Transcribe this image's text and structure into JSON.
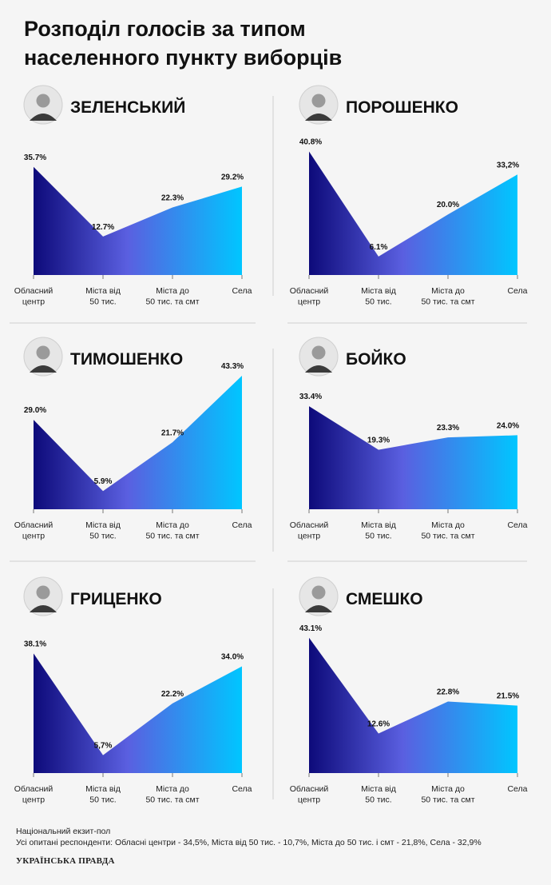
{
  "title": {
    "line1": "Розподіл голосів за типом",
    "line2": "населенного пункту виборців"
  },
  "chart_data": [
    {
      "type": "area",
      "title": "ЗЕЛЕНСЬКИЙ",
      "portrait": "portrait-zelensky",
      "categories": [
        "Обласний центр",
        "Міста від 50 тис.",
        "Міста до 50 тис. та смт",
        "Села"
      ],
      "category_lines": [
        [
          "Обласний",
          "центр"
        ],
        [
          "Міста від",
          "50 тис."
        ],
        [
          "Міста до",
          "50 тис. та смт"
        ],
        [
          "Села"
        ]
      ],
      "values": [
        35.7,
        12.7,
        22.3,
        29.2
      ],
      "labels": [
        "35.7%",
        "12.7%",
        "22.3%",
        "29.2%"
      ]
    },
    {
      "type": "area",
      "title": "ПОРОШЕНКО",
      "portrait": "portrait-poroshenko",
      "categories": [
        "Обласний центр",
        "Міста від 50 тис.",
        "Міста до 50 тис. та смт",
        "Села"
      ],
      "category_lines": [
        [
          "Обласний",
          "центр"
        ],
        [
          "Міста від",
          "50 тис."
        ],
        [
          "Міста до",
          "50 тис. та смт"
        ],
        [
          "Села"
        ]
      ],
      "values": [
        40.8,
        6.1,
        20.0,
        33.2
      ],
      "labels": [
        "40.8%",
        "6.1%",
        "20.0%",
        "33,2%"
      ]
    },
    {
      "type": "area",
      "title": "ТИМОШЕНКО",
      "portrait": "portrait-tymoshenko",
      "categories": [
        "Обласний центр",
        "Міста від 50 тис.",
        "Міста до 50 тис. та смт",
        "Села"
      ],
      "category_lines": [
        [
          "Обласний",
          "центр"
        ],
        [
          "Міста від",
          "50 тис."
        ],
        [
          "Міста до",
          "50 тис. та смт"
        ],
        [
          "Села"
        ]
      ],
      "values": [
        29.0,
        5.9,
        21.7,
        43.3
      ],
      "labels": [
        "29.0%",
        "5.9%",
        "21.7%",
        "43.3%"
      ]
    },
    {
      "type": "area",
      "title": "БОЙКО",
      "portrait": "portrait-boyko",
      "categories": [
        "Обласний центр",
        "Міста від 50 тис.",
        "Міста до 50 тис. та смт",
        "Села"
      ],
      "category_lines": [
        [
          "Обласний",
          "центр"
        ],
        [
          "Міста від",
          "50 тис."
        ],
        [
          "Міста до",
          "50 тис. та смт"
        ],
        [
          "Села"
        ]
      ],
      "values": [
        33.4,
        19.3,
        23.3,
        24.0
      ],
      "labels": [
        "33.4%",
        "19.3%",
        "23.3%",
        "24.0%"
      ]
    },
    {
      "type": "area",
      "title": "ГРИЦЕНКО",
      "portrait": "portrait-hrytsenko",
      "categories": [
        "Обласний центр",
        "Міста від 50 тис.",
        "Міста до 50 тис. та смт",
        "Села"
      ],
      "category_lines": [
        [
          "Обласний",
          "центр"
        ],
        [
          "Міста від",
          "50 тис."
        ],
        [
          "Міста до",
          "50 тис. та смт"
        ],
        [
          "Села"
        ]
      ],
      "values": [
        38.1,
        5.7,
        22.2,
        34.0
      ],
      "labels": [
        "38.1%",
        "5,7%",
        "22.2%",
        "34.0%"
      ]
    },
    {
      "type": "area",
      "title": "СМЕШКО",
      "portrait": "portrait-smeshko",
      "categories": [
        "Обласний центр",
        "Міста від 50 тис.",
        "Міста до 50 тис. та смт",
        "Села"
      ],
      "category_lines": [
        [
          "Обласний",
          "центр"
        ],
        [
          "Міста від",
          "50 тис."
        ],
        [
          "Міста до",
          "50 тис. та смт"
        ],
        [
          "Села"
        ]
      ],
      "values": [
        43.1,
        12.6,
        22.8,
        21.5
      ],
      "labels": [
        "43.1%",
        "12.6%",
        "22.8%",
        "21.5%"
      ]
    }
  ],
  "colors": {
    "gradient_start": "#0d0a7a",
    "gradient_mid": "#5a5fe0",
    "gradient_end": "#00c6ff",
    "divider": "#cfcfcf"
  },
  "footer": {
    "source": "Національний екзит-пол",
    "note": "Усі опитані респонденти: Обласні центри - 34,5%, Міста від 50 тис. - 10,7%, Міста до 50 тис. і смт - 21,8%, Села - 32,9%"
  },
  "logo": "УКРАЇНСЬКА ПРАВДА"
}
